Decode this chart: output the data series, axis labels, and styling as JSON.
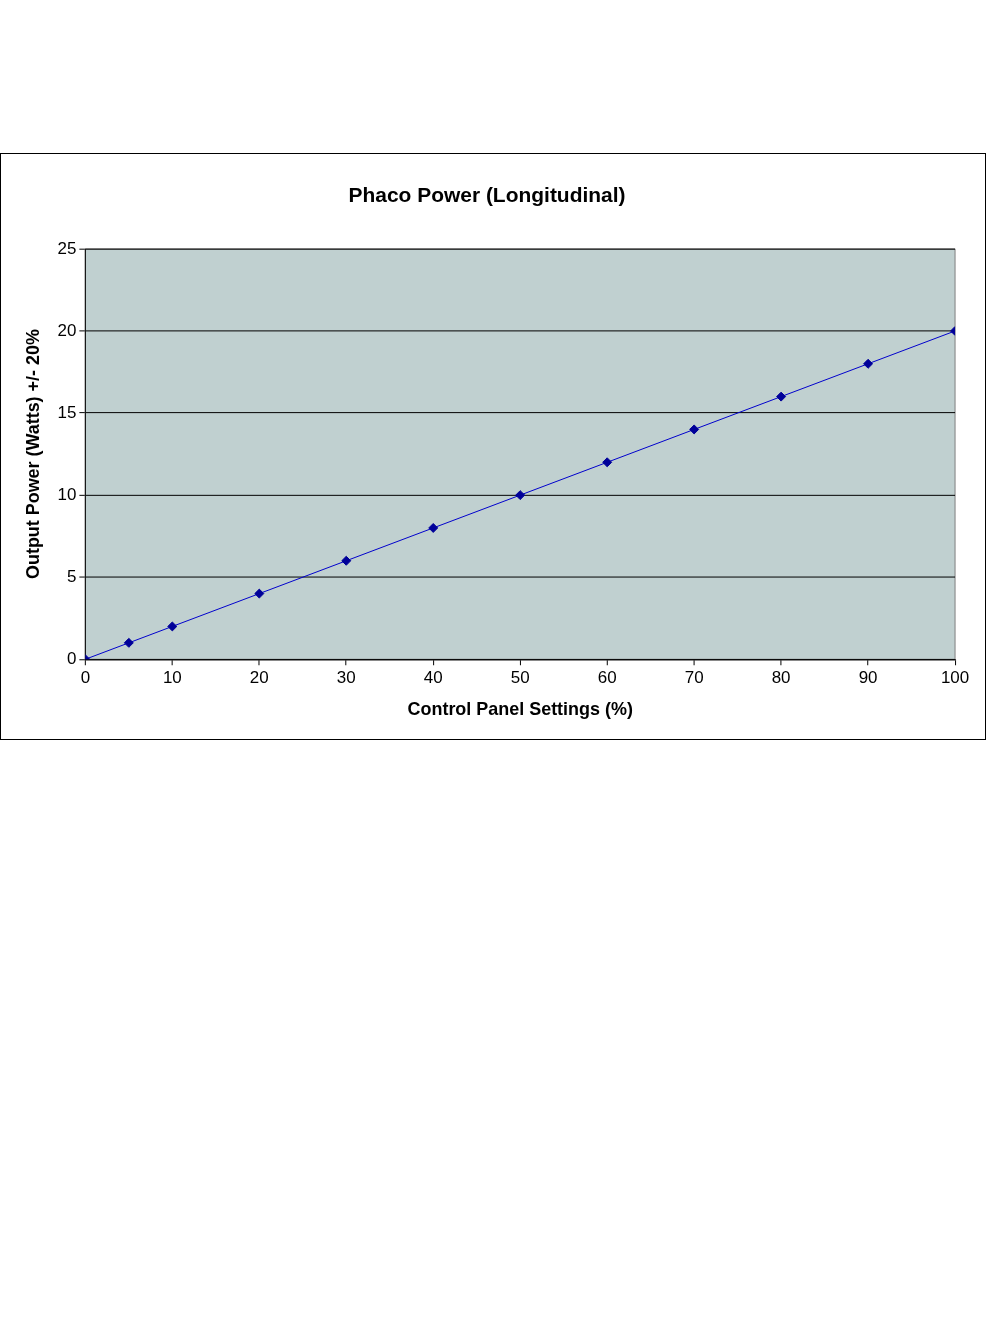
{
  "chart_data": {
    "type": "line",
    "title": "Phaco Power (Longitudinal)",
    "xlabel": "Control Panel Settings (%)",
    "ylabel": "Output Power (Watts) +/- 20%",
    "x": [
      0,
      5,
      10,
      20,
      30,
      40,
      50,
      60,
      70,
      80,
      90,
      100
    ],
    "series": [
      {
        "color": "#000099",
        "values": [
          0,
          1,
          2,
          4,
          6,
          8,
          10,
          12,
          14,
          16,
          18,
          20
        ]
      }
    ],
    "xlim": [
      0,
      100
    ],
    "xticks": [
      0,
      10,
      20,
      30,
      40,
      50,
      60,
      70,
      80,
      90,
      100
    ],
    "ylim": [
      0,
      25
    ],
    "yticks": [
      0,
      5,
      10,
      15,
      20,
      25
    ],
    "grid": "y",
    "legend": false,
    "marker": "diamond",
    "line_style": "solid"
  }
}
